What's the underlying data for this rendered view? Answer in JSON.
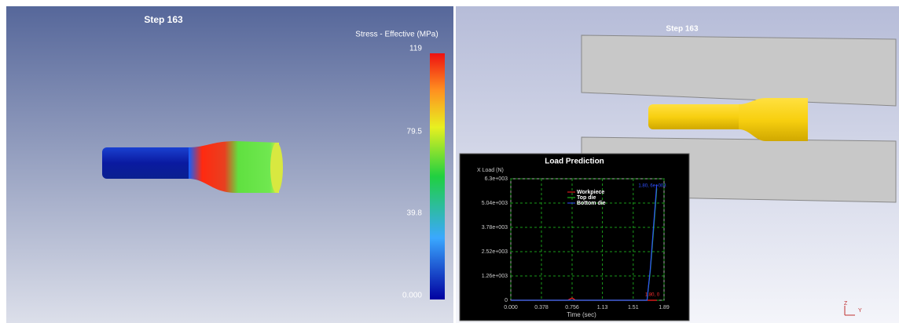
{
  "left_view": {
    "step": "Step  163",
    "legend_title": "Stress - Effective (MPa)",
    "legend_labels": [
      "119",
      "79.5",
      "39.8",
      "0.000"
    ]
  },
  "right_view": {
    "step": "Step  163",
    "triad": [
      "Z",
      "Y"
    ]
  },
  "load_chart": {
    "title": "Load Prediction",
    "y_label": "X Load (N)",
    "x_label": "Time (sec)",
    "xlim": [
      0,
      1.89
    ],
    "ylim": [
      0,
      6300
    ],
    "xticks": [
      {
        "value": 0,
        "label": "0.000"
      },
      0.378,
      0.756,
      1.13,
      1.51,
      1.89
    ],
    "yticks": [
      0,
      {
        "value": 1260,
        "label": "1.26e+003"
      },
      {
        "value": 2520,
        "label": "2.52e+003"
      },
      {
        "value": 3780,
        "label": "3.78e+003"
      },
      {
        "value": 5040,
        "label": "5.04e+003"
      },
      {
        "value": 6300,
        "label": "6.3e+003"
      }
    ],
    "series": [
      {
        "name": "Workpiece",
        "color": "#ff2020",
        "x": [
          0,
          0.7,
          0.756,
          0.8,
          1.5,
          1.75,
          1.8
        ],
        "values": [
          0,
          0,
          120,
          0,
          0,
          0,
          0
        ]
      },
      {
        "name": "Top die",
        "color": "#20d020",
        "x": [
          0,
          1.68,
          1.72,
          1.76,
          1.8
        ],
        "values": [
          0,
          0,
          1500,
          3600,
          5800
        ]
      },
      {
        "name": "Bottom die",
        "color": "#3050ff",
        "x": [
          0,
          1.68,
          1.72,
          1.76,
          1.8
        ],
        "values": [
          0,
          0,
          1600,
          3800,
          6000
        ]
      }
    ],
    "annotations": [
      "1.80, 6e+003",
      "1.80, 0"
    ]
  }
}
